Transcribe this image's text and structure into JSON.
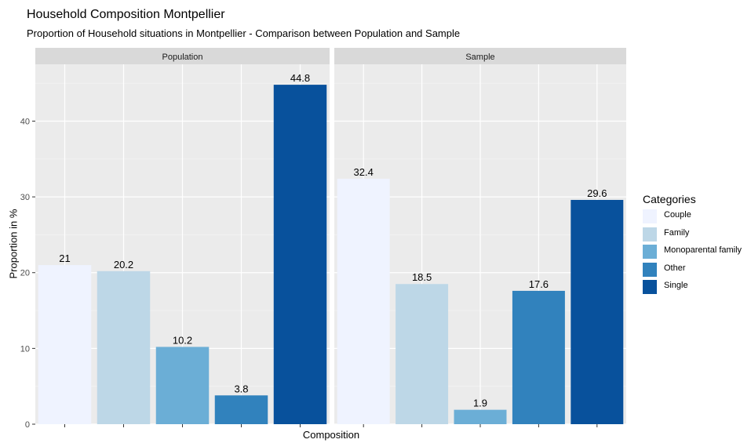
{
  "chart_data": {
    "type": "bar",
    "title": "Household Composition Montpellier",
    "subtitle": "Proportion of Household situations in Montpellier - Comparison between Population and Sample",
    "xlabel": "Composition",
    "ylabel": "Proportion in %",
    "ylim": [
      0,
      47.5
    ],
    "yticks": [
      0,
      10,
      20,
      30,
      40
    ],
    "categories": [
      "Couple",
      "Family",
      "Monoparental family",
      "Other",
      "Single"
    ],
    "facets": [
      {
        "name": "Population",
        "values": [
          21,
          20.2,
          10.2,
          3.8,
          44.8
        ],
        "labels": [
          "21",
          "20.2",
          "10.2",
          "3.8",
          "44.8"
        ]
      },
      {
        "name": "Sample",
        "values": [
          32.4,
          18.5,
          1.9,
          17.6,
          29.6
        ],
        "labels": [
          "32.4",
          "18.5",
          "1.9",
          "17.6",
          "29.6"
        ]
      }
    ],
    "legend": {
      "title": "Categories",
      "position": "right",
      "entries": [
        "Couple",
        "Family",
        "Monoparental family",
        "Other",
        "Single"
      ]
    },
    "colors": [
      "#eff3ff",
      "#bdd7e7",
      "#6baed6",
      "#3182bd",
      "#08519c"
    ],
    "panel_background": "#ebebeb",
    "strip_background": "#d9d9d9",
    "grid": true
  }
}
